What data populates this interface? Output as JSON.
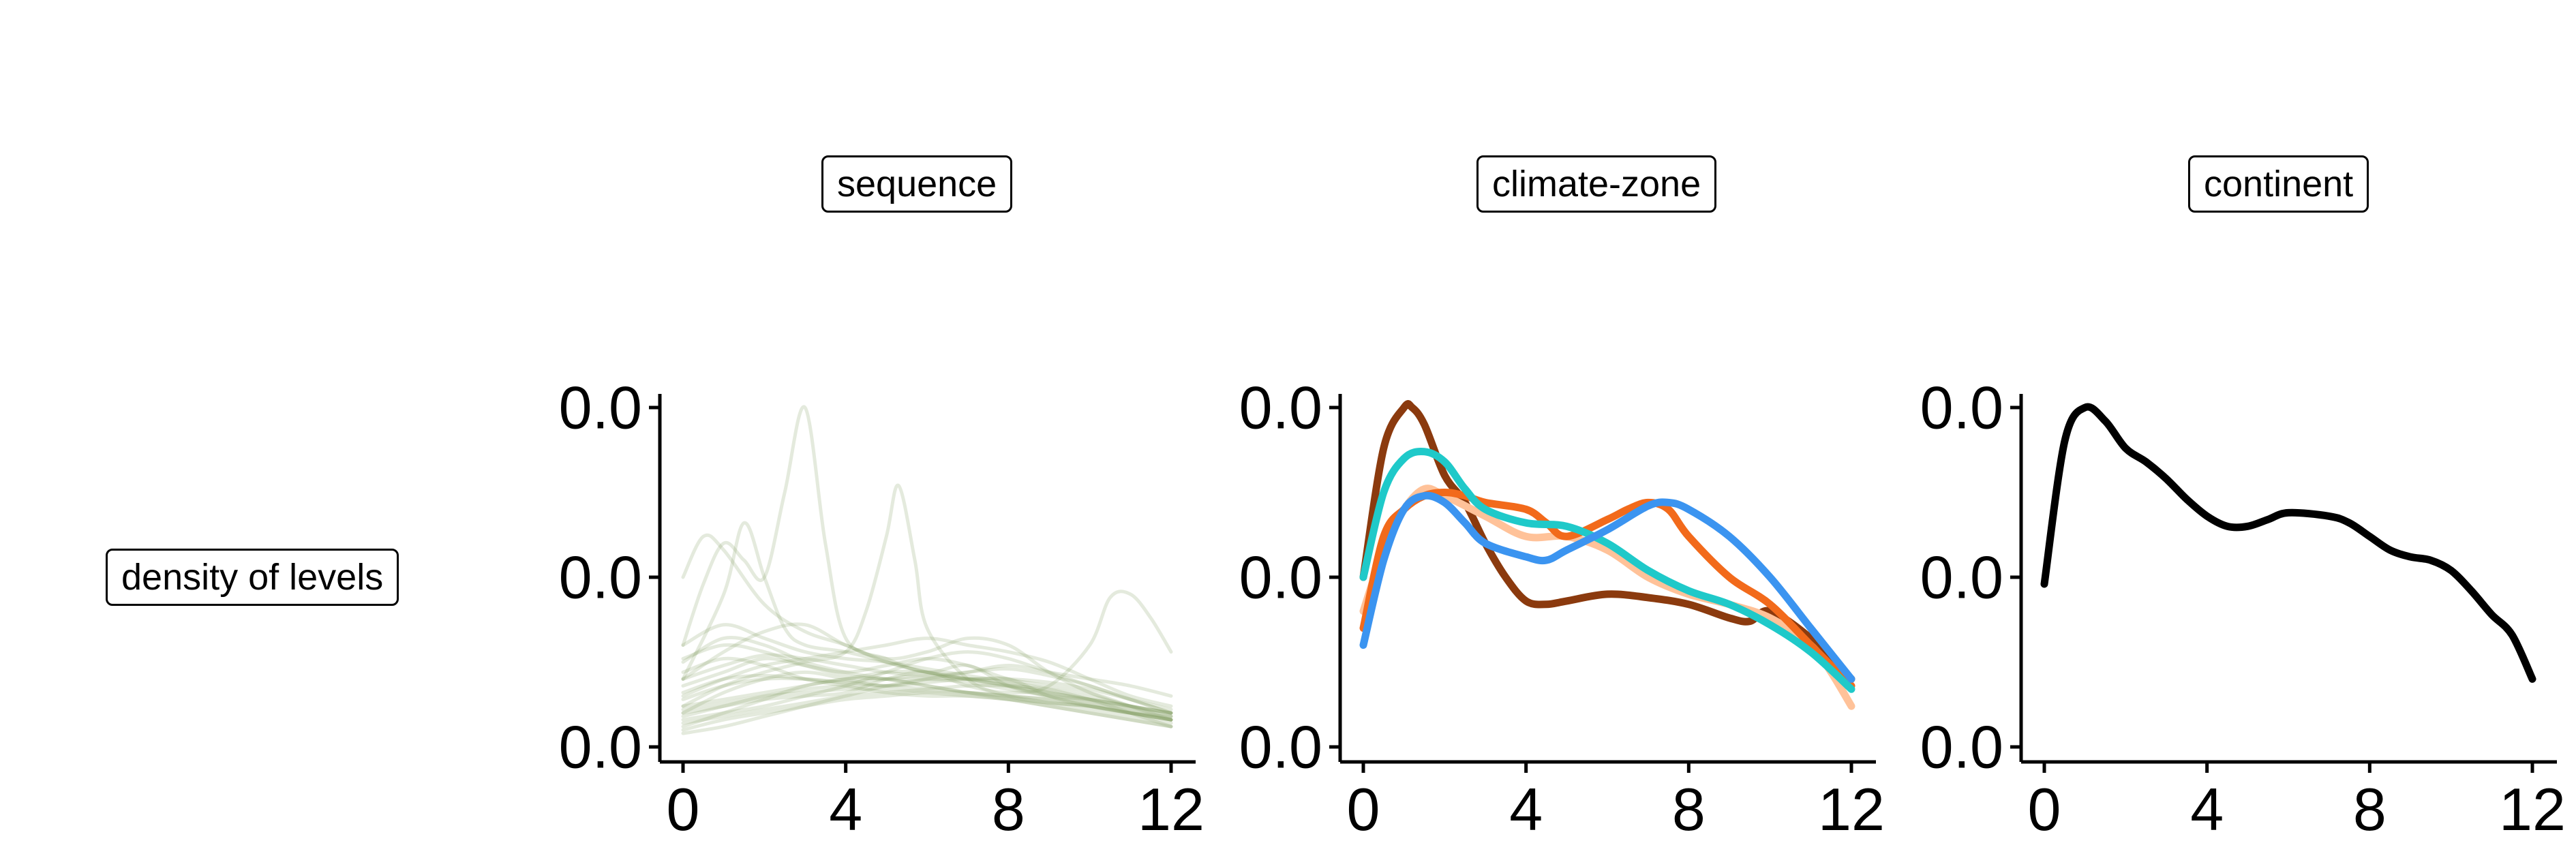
{
  "row_label": "density of levels",
  "chart_data": [
    {
      "type": "line",
      "facet": "sequence",
      "x_ticks": [
        "0",
        "4",
        "8",
        "12"
      ],
      "y_ticks": [
        "0.0",
        "0.0",
        "0.0"
      ],
      "xlim": [
        0,
        12
      ],
      "ylim": [
        0,
        1
      ],
      "grid": false,
      "legend": "none",
      "color": "#83A063",
      "description": "many overlapping translucent density curves, most between 0.05 and 0.3",
      "series": [
        {
          "x": [
            0,
            0.5,
            1,
            1.5,
            2,
            2.5,
            3,
            3.5,
            4,
            5,
            6,
            7,
            8,
            9,
            10,
            11,
            12
          ],
          "y": [
            0.3,
            0.48,
            0.6,
            0.55,
            0.5,
            0.75,
            1.0,
            0.6,
            0.32,
            0.26,
            0.22,
            0.24,
            0.18,
            0.15,
            0.14,
            0.12,
            0.1
          ]
        },
        {
          "x": [
            0,
            1,
            1.5,
            2,
            2.5,
            3,
            4,
            5,
            6,
            7,
            8,
            9,
            10,
            11,
            12
          ],
          "y": [
            0.2,
            0.45,
            0.66,
            0.5,
            0.35,
            0.3,
            0.28,
            0.25,
            0.22,
            0.2,
            0.2,
            0.15,
            0.12,
            0.1,
            0.08
          ]
        },
        {
          "x": [
            0,
            1,
            2,
            3,
            4,
            4.5,
            5,
            5.3,
            5.7,
            6,
            7,
            8,
            9,
            10,
            11,
            12
          ],
          "y": [
            0.12,
            0.18,
            0.22,
            0.25,
            0.28,
            0.4,
            0.62,
            0.77,
            0.55,
            0.35,
            0.2,
            0.15,
            0.13,
            0.12,
            0.1,
            0.08
          ]
        },
        {
          "x": [
            0,
            1,
            2,
            3,
            4,
            5,
            6,
            7,
            8,
            9,
            10,
            10.5,
            11,
            11.5,
            12
          ],
          "y": [
            0.1,
            0.12,
            0.14,
            0.15,
            0.16,
            0.2,
            0.22,
            0.18,
            0.16,
            0.18,
            0.3,
            0.44,
            0.45,
            0.38,
            0.28
          ]
        },
        {
          "x": [
            0,
            0.5,
            1,
            2,
            3,
            4,
            5,
            6,
            7,
            8,
            9,
            10,
            11,
            12
          ],
          "y": [
            0.5,
            0.62,
            0.58,
            0.42,
            0.34,
            0.3,
            0.25,
            0.22,
            0.2,
            0.18,
            0.15,
            0.13,
            0.1,
            0.08
          ]
        },
        {
          "x": [
            0,
            1,
            2,
            3,
            4,
            5,
            6,
            7,
            8,
            9,
            10,
            11,
            12
          ],
          "y": [
            0.15,
            0.2,
            0.24,
            0.26,
            0.28,
            0.3,
            0.32,
            0.3,
            0.28,
            0.25,
            0.2,
            0.15,
            0.12
          ]
        },
        {
          "x": [
            0,
            1,
            2,
            3,
            4,
            5,
            6,
            7,
            8,
            9,
            10,
            11,
            12
          ],
          "y": [
            0.2,
            0.28,
            0.34,
            0.36,
            0.3,
            0.26,
            0.28,
            0.32,
            0.3,
            0.22,
            0.16,
            0.12,
            0.1
          ]
        },
        {
          "x": [
            0,
            1,
            2,
            3,
            4,
            5,
            6,
            7,
            8,
            9,
            10,
            11,
            12
          ],
          "y": [
            0.1,
            0.16,
            0.2,
            0.22,
            0.2,
            0.18,
            0.2,
            0.22,
            0.24,
            0.22,
            0.2,
            0.18,
            0.15
          ]
        },
        {
          "x": [
            0,
            1,
            2,
            3,
            4,
            5,
            6,
            7,
            8,
            9,
            10,
            11,
            12
          ],
          "y": [
            0.25,
            0.32,
            0.3,
            0.25,
            0.22,
            0.2,
            0.18,
            0.16,
            0.15,
            0.14,
            0.12,
            0.1,
            0.09
          ]
        },
        {
          "x": [
            0,
            1,
            2,
            3,
            4,
            5,
            6,
            7,
            8,
            9,
            10,
            11,
            12
          ],
          "y": [
            0.08,
            0.1,
            0.12,
            0.15,
            0.18,
            0.22,
            0.26,
            0.28,
            0.26,
            0.22,
            0.18,
            0.14,
            0.1
          ]
        },
        {
          "x": [
            0,
            1,
            2,
            3,
            4,
            5,
            6,
            7,
            8,
            9,
            10,
            11,
            12
          ],
          "y": [
            0.12,
            0.14,
            0.16,
            0.18,
            0.2,
            0.2,
            0.18,
            0.16,
            0.14,
            0.12,
            0.1,
            0.08,
            0.06
          ]
        },
        {
          "x": [
            0,
            1,
            2,
            3,
            4,
            5,
            6,
            7,
            8,
            9,
            10,
            11,
            12
          ],
          "y": [
            0.05,
            0.08,
            0.1,
            0.12,
            0.14,
            0.15,
            0.16,
            0.16,
            0.15,
            0.14,
            0.12,
            0.1,
            0.08
          ]
        },
        {
          "x": [
            0,
            1,
            2,
            3,
            4,
            5,
            6,
            7,
            8,
            9,
            10,
            11,
            12
          ],
          "y": [
            0.3,
            0.36,
            0.32,
            0.28,
            0.26,
            0.25,
            0.23,
            0.21,
            0.19,
            0.16,
            0.14,
            0.12,
            0.1
          ]
        },
        {
          "x": [
            0,
            1,
            2,
            3,
            4,
            5,
            6,
            7,
            8,
            9,
            10,
            11,
            12
          ],
          "y": [
            0.18,
            0.22,
            0.26,
            0.24,
            0.22,
            0.24,
            0.26,
            0.24,
            0.2,
            0.18,
            0.16,
            0.12,
            0.08
          ]
        },
        {
          "x": [
            0,
            1,
            2,
            3,
            4,
            5,
            6,
            7,
            8,
            9,
            10,
            11,
            12
          ],
          "y": [
            0.06,
            0.1,
            0.14,
            0.18,
            0.2,
            0.22,
            0.22,
            0.2,
            0.18,
            0.16,
            0.14,
            0.1,
            0.06
          ]
        },
        {
          "x": [
            0,
            1,
            2,
            3,
            4,
            5,
            6,
            7,
            8,
            9,
            10,
            11,
            12
          ],
          "y": [
            0.22,
            0.26,
            0.24,
            0.2,
            0.18,
            0.16,
            0.15,
            0.15,
            0.14,
            0.13,
            0.12,
            0.1,
            0.08
          ]
        },
        {
          "x": [
            0,
            1,
            2,
            3,
            4,
            5,
            6,
            7,
            8,
            9,
            10,
            11,
            12
          ],
          "y": [
            0.14,
            0.18,
            0.2,
            0.2,
            0.19,
            0.18,
            0.19,
            0.2,
            0.2,
            0.19,
            0.17,
            0.14,
            0.11
          ]
        },
        {
          "x": [
            0,
            1,
            2,
            3,
            4,
            5,
            6,
            7,
            8,
            9,
            10,
            11,
            12
          ],
          "y": [
            0.09,
            0.12,
            0.15,
            0.17,
            0.18,
            0.18,
            0.17,
            0.16,
            0.15,
            0.13,
            0.11,
            0.09,
            0.07
          ]
        },
        {
          "x": [
            0,
            1,
            2,
            3,
            4,
            5,
            6,
            7,
            8,
            9,
            10,
            11,
            12
          ],
          "y": [
            0.26,
            0.3,
            0.28,
            0.24,
            0.21,
            0.2,
            0.2,
            0.19,
            0.17,
            0.15,
            0.13,
            0.11,
            0.09
          ]
        },
        {
          "x": [
            0,
            1,
            2,
            3,
            4,
            5,
            6,
            7,
            8,
            9,
            10,
            11,
            12
          ],
          "y": [
            0.04,
            0.06,
            0.09,
            0.12,
            0.15,
            0.18,
            0.2,
            0.2,
            0.19,
            0.17,
            0.14,
            0.11,
            0.08
          ]
        },
        {
          "x": [
            0,
            1,
            2,
            3,
            4,
            5,
            6,
            7,
            8,
            9,
            10,
            11,
            12
          ],
          "y": [
            0.16,
            0.2,
            0.21,
            0.2,
            0.19,
            0.2,
            0.21,
            0.2,
            0.18,
            0.16,
            0.14,
            0.12,
            0.1
          ]
        },
        {
          "x": [
            0,
            1,
            2,
            3,
            4,
            5,
            6,
            7,
            8,
            9,
            10,
            11,
            12
          ],
          "y": [
            0.11,
            0.13,
            0.15,
            0.16,
            0.17,
            0.17,
            0.16,
            0.15,
            0.14,
            0.12,
            0.1,
            0.08,
            0.06
          ]
        },
        {
          "x": [
            0,
            1,
            2,
            3,
            4,
            5,
            6,
            7,
            8,
            9,
            10,
            11,
            12
          ],
          "y": [
            0.2,
            0.24,
            0.27,
            0.26,
            0.24,
            0.22,
            0.21,
            0.22,
            0.23,
            0.21,
            0.18,
            0.14,
            0.1
          ]
        },
        {
          "x": [
            0,
            1,
            2,
            3,
            4,
            5,
            6,
            7,
            8,
            9,
            10,
            11,
            12
          ],
          "y": [
            0.07,
            0.09,
            0.11,
            0.13,
            0.15,
            0.16,
            0.17,
            0.18,
            0.18,
            0.17,
            0.15,
            0.12,
            0.09
          ]
        }
      ]
    },
    {
      "type": "line",
      "facet": "climate-zone",
      "x_ticks": [
        "0",
        "4",
        "8",
        "12"
      ],
      "y_ticks": [
        "0.0",
        "0.0",
        "0.0"
      ],
      "xlim": [
        0,
        12
      ],
      "ylim": [
        0,
        1
      ],
      "grid": false,
      "legend": "none",
      "series": [
        {
          "color": "#8B3A0E",
          "x": [
            0,
            0.5,
            1,
            1.2,
            1.5,
            2,
            2.5,
            3,
            3.5,
            4,
            4.5,
            5,
            6,
            7,
            8,
            9,
            9.5,
            10,
            11,
            12
          ],
          "y": [
            0.5,
            0.88,
            1.0,
            1.0,
            0.95,
            0.8,
            0.72,
            0.6,
            0.5,
            0.43,
            0.42,
            0.43,
            0.45,
            0.44,
            0.42,
            0.38,
            0.37,
            0.4,
            0.32,
            0.2
          ]
        },
        {
          "color": "#FFC299",
          "x": [
            0,
            0.5,
            1,
            1.5,
            2,
            3,
            4,
            5,
            6,
            7,
            8,
            9,
            10,
            11,
            11.5,
            12
          ],
          "y": [
            0.4,
            0.58,
            0.7,
            0.76,
            0.74,
            0.68,
            0.62,
            0.62,
            0.58,
            0.5,
            0.45,
            0.42,
            0.38,
            0.3,
            0.22,
            0.12
          ]
        },
        {
          "color": "#F26A1B",
          "x": [
            0,
            0.5,
            1,
            1.5,
            2,
            2.5,
            3,
            4,
            4.5,
            5,
            6,
            6.5,
            7,
            7.5,
            8,
            9,
            10,
            11,
            12
          ],
          "y": [
            0.35,
            0.62,
            0.7,
            0.74,
            0.75,
            0.74,
            0.72,
            0.7,
            0.66,
            0.62,
            0.67,
            0.7,
            0.72,
            0.7,
            0.62,
            0.5,
            0.42,
            0.3,
            0.18
          ]
        },
        {
          "color": "#1FC9C9",
          "x": [
            0,
            0.5,
            1,
            1.5,
            2,
            2.5,
            3,
            4,
            5,
            6,
            7,
            8,
            9,
            10,
            11,
            12
          ],
          "y": [
            0.5,
            0.75,
            0.85,
            0.87,
            0.84,
            0.76,
            0.7,
            0.66,
            0.65,
            0.6,
            0.52,
            0.46,
            0.42,
            0.36,
            0.28,
            0.17
          ]
        },
        {
          "color": "#3B94F0",
          "x": [
            0,
            0.5,
            1,
            1.5,
            2,
            2.5,
            3,
            4,
            4.5,
            5,
            6,
            7,
            7.5,
            8,
            9,
            10,
            11,
            12
          ],
          "y": [
            0.3,
            0.55,
            0.7,
            0.74,
            0.72,
            0.66,
            0.6,
            0.56,
            0.55,
            0.58,
            0.64,
            0.71,
            0.72,
            0.7,
            0.62,
            0.5,
            0.35,
            0.2
          ]
        }
      ]
    },
    {
      "type": "line",
      "facet": "continent",
      "x_ticks": [
        "0",
        "4",
        "8",
        "12"
      ],
      "y_ticks": [
        "0.0",
        "0.0",
        "0.0"
      ],
      "xlim": [
        0,
        12
      ],
      "ylim": [
        0,
        1
      ],
      "grid": false,
      "legend": "none",
      "series": [
        {
          "color": "#000000",
          "x": [
            0,
            0.5,
            1,
            1.5,
            2,
            2.5,
            3,
            3.5,
            4,
            4.5,
            5,
            5.5,
            6,
            7,
            7.5,
            8,
            8.5,
            9,
            9.5,
            10,
            10.5,
            11,
            11.5,
            12
          ],
          "y": [
            0.48,
            0.9,
            1.0,
            0.96,
            0.88,
            0.84,
            0.79,
            0.73,
            0.68,
            0.65,
            0.65,
            0.67,
            0.69,
            0.68,
            0.66,
            0.62,
            0.58,
            0.56,
            0.55,
            0.52,
            0.46,
            0.39,
            0.33,
            0.2
          ]
        }
      ]
    }
  ]
}
